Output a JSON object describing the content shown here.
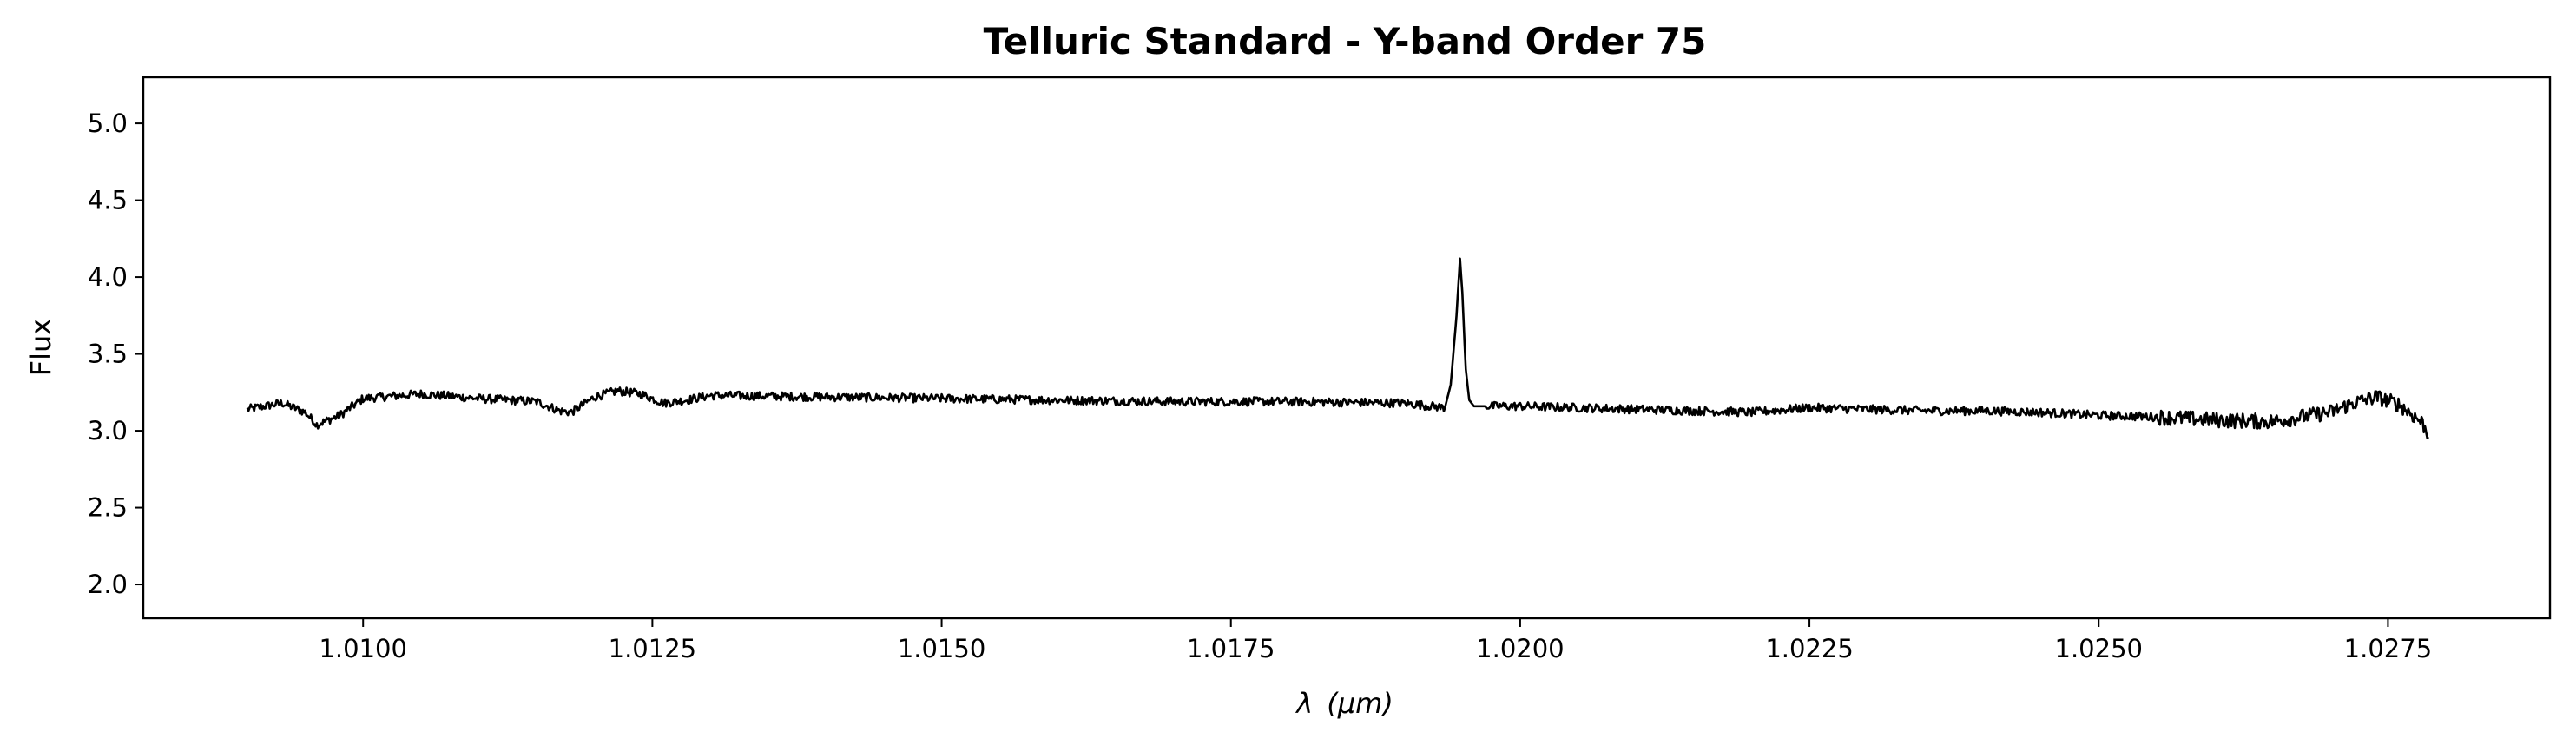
{
  "chart_data": {
    "type": "line",
    "title": "Telluric Standard - Y-band Order 75",
    "xlabel_symbol": "λ",
    "xlabel_unit": "(μm)",
    "ylabel": "Flux",
    "xlim": [
      1.0081,
      1.0289
    ],
    "ylim": [
      1.78,
      5.3
    ],
    "xticks": [
      1.01,
      1.0125,
      1.015,
      1.0175,
      1.02,
      1.0225,
      1.025,
      1.0275
    ],
    "xtick_labels": [
      "1.0100",
      "1.0125",
      "1.0150",
      "1.0175",
      "1.0200",
      "1.0225",
      "1.0250",
      "1.0275"
    ],
    "yticks": [
      2.0,
      2.5,
      3.0,
      3.5,
      4.0,
      4.5,
      5.0
    ],
    "ytick_labels": [
      "2.0",
      "2.5",
      "3.0",
      "3.5",
      "4.0",
      "4.5",
      "5.0"
    ],
    "grid": false,
    "line_color": "#000000",
    "series": [
      {
        "x": [
          1.009,
          1.0093,
          1.0095,
          1.0096,
          1.0098,
          1.01,
          1.0105,
          1.011,
          1.0115,
          1.0117,
          1.0118,
          1.012,
          1.0122,
          1.0124,
          1.0126,
          1.0128,
          1.013,
          1.014,
          1.015,
          1.016,
          1.017,
          1.018,
          1.019,
          1.01935,
          1.0194,
          1.01945,
          1.01948,
          1.0195,
          1.01953,
          1.01956,
          1.0196,
          1.0197,
          1.02,
          1.0205,
          1.021,
          1.0215,
          1.022,
          1.0225,
          1.023,
          1.0235,
          1.024,
          1.0245,
          1.025,
          1.0255,
          1.026,
          1.0265,
          1.027,
          1.0272,
          1.0274,
          1.0276,
          1.0278,
          1.02785
        ],
        "y": [
          3.14,
          3.18,
          3.12,
          3.04,
          3.1,
          3.21,
          3.24,
          3.21,
          3.19,
          3.13,
          3.12,
          3.22,
          3.26,
          3.24,
          3.18,
          3.2,
          3.23,
          3.22,
          3.21,
          3.2,
          3.19,
          3.19,
          3.18,
          3.15,
          3.3,
          3.75,
          4.12,
          3.9,
          3.4,
          3.2,
          3.16,
          3.16,
          3.16,
          3.15,
          3.14,
          3.13,
          3.12,
          3.15,
          3.14,
          3.13,
          3.13,
          3.12,
          3.1,
          3.09,
          3.07,
          3.06,
          3.12,
          3.18,
          3.22,
          3.17,
          3.05,
          2.96
        ]
      }
    ]
  }
}
